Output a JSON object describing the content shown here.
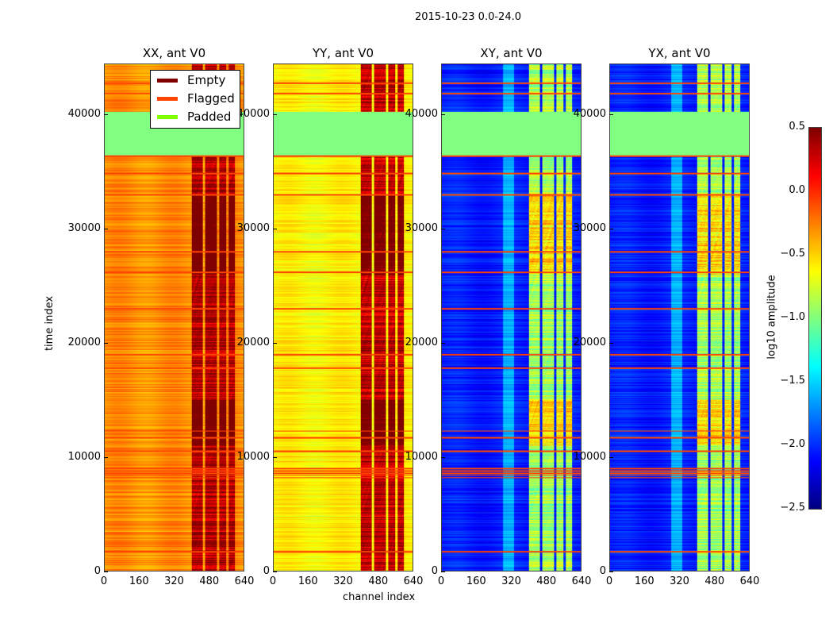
{
  "chart_data": {
    "type": "heatmap",
    "title": "2015-10-23 0.0-24.0",
    "xlabel": "channel index",
    "ylabel": "time index",
    "xlim": [
      0,
      640
    ],
    "ylim": [
      0,
      44444
    ],
    "xticks": [
      "0",
      "160",
      "320",
      "480",
      "640"
    ],
    "yticks": [
      "0",
      "10000",
      "20000",
      "30000",
      "40000"
    ],
    "panels": [
      {
        "title": "XX, ant V0",
        "base": -0.3,
        "hot": 0.35
      },
      {
        "title": "YY, ant V0",
        "base": -0.6,
        "hot": 0.3
      },
      {
        "title": "XY, ant V0",
        "base": -2.05,
        "hot": -0.9
      },
      {
        "title": "YX, ant V0",
        "base": -2.05,
        "hot": -0.9
      }
    ],
    "legend": {
      "placement": "top-right of first panel",
      "entries": [
        {
          "label": "Empty",
          "color": "#800000"
        },
        {
          "label": "Flagged",
          "color": "#ff4500"
        },
        {
          "label": "Padded",
          "color": "#7fff00"
        }
      ]
    },
    "padded_time_range": [
      36500,
      40300
    ],
    "flagged_times": [
      42800,
      41900,
      36400,
      34900,
      33000,
      28000,
      26200,
      23000,
      19000,
      17800,
      12300,
      11700,
      10500,
      9000,
      8800,
      8600,
      8400,
      8200,
      1700
    ],
    "hot_channel_range": [
      400,
      600
    ],
    "colorbar": {
      "label": "log10 amplitude",
      "range": [
        -2.5,
        0.5
      ],
      "ticks": [
        "0.5",
        "0.0",
        "−0.5",
        "−1.0",
        "−1.5",
        "−2.0",
        "−2.5"
      ]
    }
  }
}
